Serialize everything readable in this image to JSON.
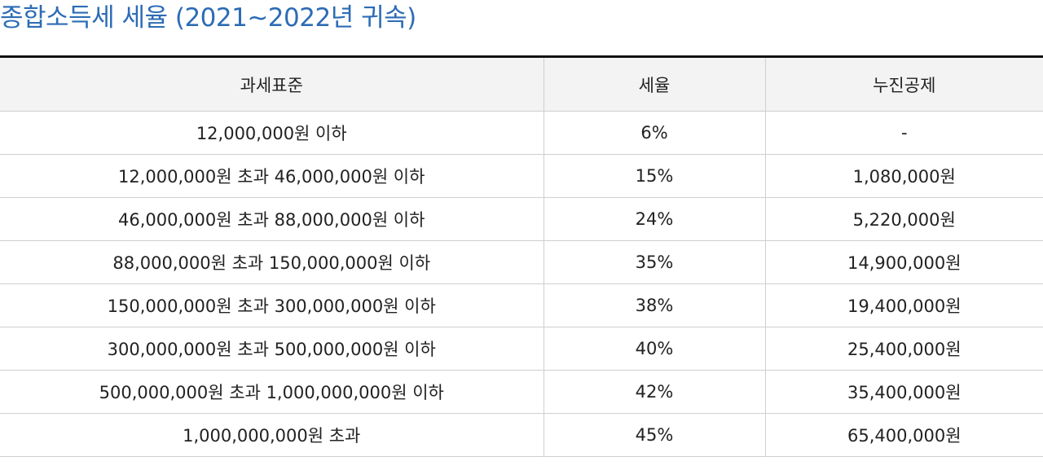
{
  "title": "종합소득세 세율 (2021~2022년 귀속)",
  "table": {
    "headers": [
      "과세표준",
      "세율",
      "누진공제"
    ],
    "rows": [
      [
        "12,000,000원 이하",
        "6%",
        "-"
      ],
      [
        "12,000,000원 초과 46,000,000원 이하",
        "15%",
        "1,080,000원"
      ],
      [
        "46,000,000원 초과 88,000,000원 이하",
        "24%",
        "5,220,000원"
      ],
      [
        "88,000,000원 초과 150,000,000원 이하",
        "35%",
        "14,900,000원"
      ],
      [
        "150,000,000원 초과 300,000,000원 이하",
        "38%",
        "19,400,000원"
      ],
      [
        "300,000,000원 초과 500,000,000원 이하",
        "40%",
        "25,400,000원"
      ],
      [
        "500,000,000원 초과 1,000,000,000원 이하",
        "42%",
        "35,400,000원"
      ],
      [
        "1,000,000,000원 초과",
        "45%",
        "65,400,000원"
      ]
    ]
  }
}
